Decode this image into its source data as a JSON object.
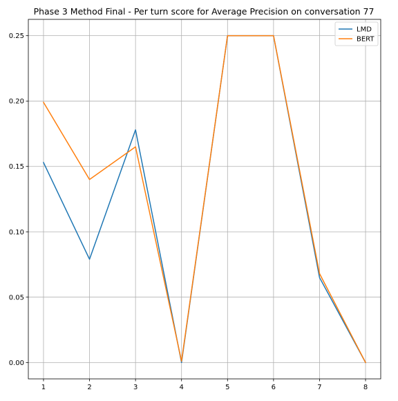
{
  "chart_data": {
    "type": "line",
    "title": "Phase 3 Method Final - Per turn score for Average Precision on conversation 77",
    "xlabel": "",
    "ylabel": "",
    "x": [
      1,
      2,
      3,
      4,
      5,
      6,
      7,
      8
    ],
    "xlim": [
      0.67,
      8.33
    ],
    "ylim": [
      -0.0125,
      0.2625
    ],
    "xticks": [
      "1",
      "2",
      "3",
      "4",
      "5",
      "6",
      "7",
      "8"
    ],
    "yticks": [
      "0.00",
      "0.05",
      "0.10",
      "0.15",
      "0.20",
      "0.25"
    ],
    "grid": true,
    "legend_position": "top-right",
    "series": [
      {
        "name": "LMD",
        "color": "#1f77b4",
        "values": [
          0.153,
          0.079,
          0.178,
          0.0,
          0.25,
          0.25,
          0.065,
          0.0
        ]
      },
      {
        "name": "BERT",
        "color": "#ff7f0e",
        "values": [
          0.199,
          0.14,
          0.165,
          0.001,
          0.25,
          0.25,
          0.068,
          0.0
        ]
      }
    ]
  }
}
